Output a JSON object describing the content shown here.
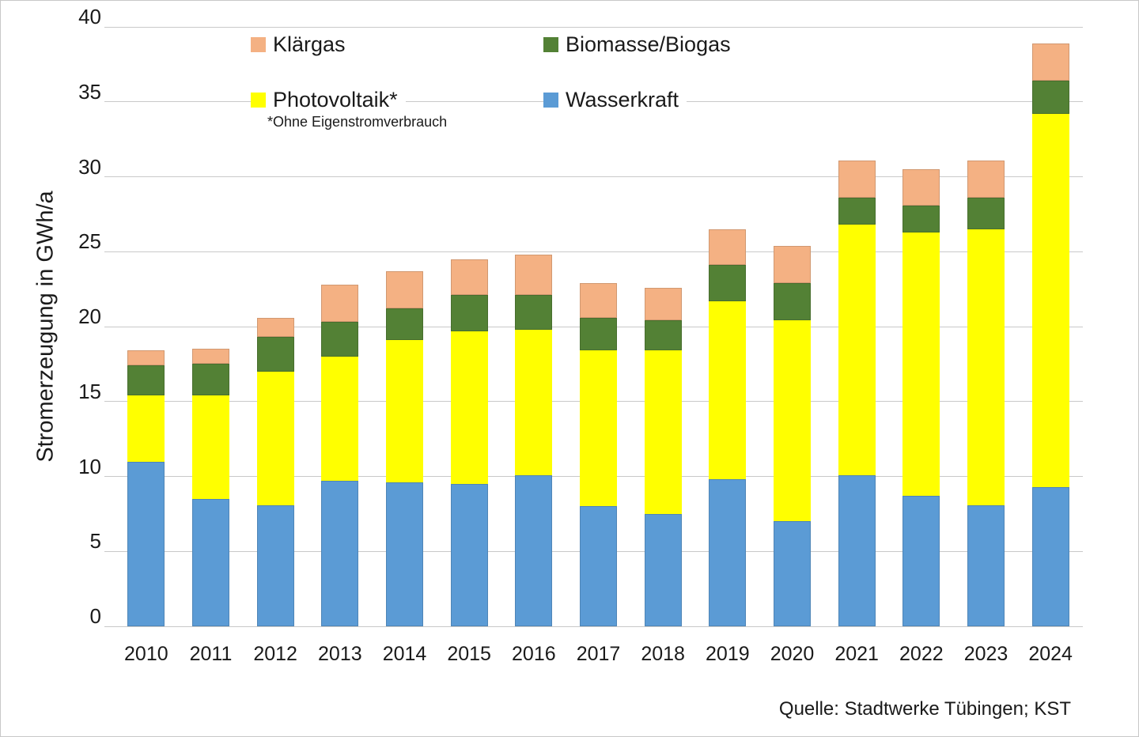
{
  "chart_data": {
    "type": "bar",
    "stacked": true,
    "title": "",
    "xlabel": "",
    "ylabel": "Stromerzeugung in GWh/a",
    "ylim": [
      0,
      40
    ],
    "yticks": [
      0,
      5,
      10,
      15,
      20,
      25,
      30,
      35,
      40
    ],
    "grid": true,
    "categories": [
      "2010",
      "2011",
      "2012",
      "2013",
      "2014",
      "2015",
      "2016",
      "2017",
      "2018",
      "2019",
      "2020",
      "2021",
      "2022",
      "2023",
      "2024"
    ],
    "series": [
      {
        "name": "Wasserkraft",
        "color": "#5B9BD5",
        "values": [
          11.0,
          8.5,
          8.1,
          9.7,
          9.6,
          9.5,
          10.1,
          8.0,
          7.5,
          9.8,
          7.0,
          10.1,
          8.7,
          8.1,
          9.3
        ]
      },
      {
        "name": "Photovoltaik*",
        "color": "#FFFF00",
        "values": [
          4.4,
          6.9,
          8.9,
          8.3,
          9.5,
          10.2,
          9.7,
          10.4,
          10.9,
          11.9,
          13.4,
          16.7,
          17.6,
          18.4,
          24.9
        ]
      },
      {
        "name": "Biomasse/Biogas",
        "color": "#538135",
        "values": [
          2.0,
          2.1,
          2.3,
          2.3,
          2.1,
          2.4,
          2.3,
          2.2,
          2.0,
          2.4,
          2.5,
          1.8,
          1.8,
          2.1,
          2.2
        ]
      },
      {
        "name": "Klärgas",
        "color": "#F4B183",
        "values": [
          1.0,
          1.0,
          1.3,
          2.5,
          2.5,
          2.4,
          2.7,
          2.3,
          2.2,
          2.4,
          2.5,
          2.5,
          2.4,
          2.5,
          2.5
        ]
      }
    ],
    "totals": [
      18.4,
      18.5,
      20.6,
      22.8,
      23.7,
      24.5,
      24.8,
      22.9,
      22.6,
      26.5,
      25.4,
      31.1,
      30.5,
      31.1,
      38.9
    ],
    "legend": {
      "position": "top-inside",
      "items": [
        {
          "label": "Klärgas",
          "color": "#F4B183"
        },
        {
          "label": "Biomasse/Biogas",
          "color": "#538135"
        },
        {
          "label": "Photovoltaik*",
          "color": "#FFFF00"
        },
        {
          "label": "Wasserkraft",
          "color": "#5B9BD5"
        }
      ],
      "footnote": "*Ohne Eigenstromverbrauch"
    },
    "source": "Quelle: Stadtwerke Tübingen; KST",
    "grid_color": "#C9C9C9"
  }
}
